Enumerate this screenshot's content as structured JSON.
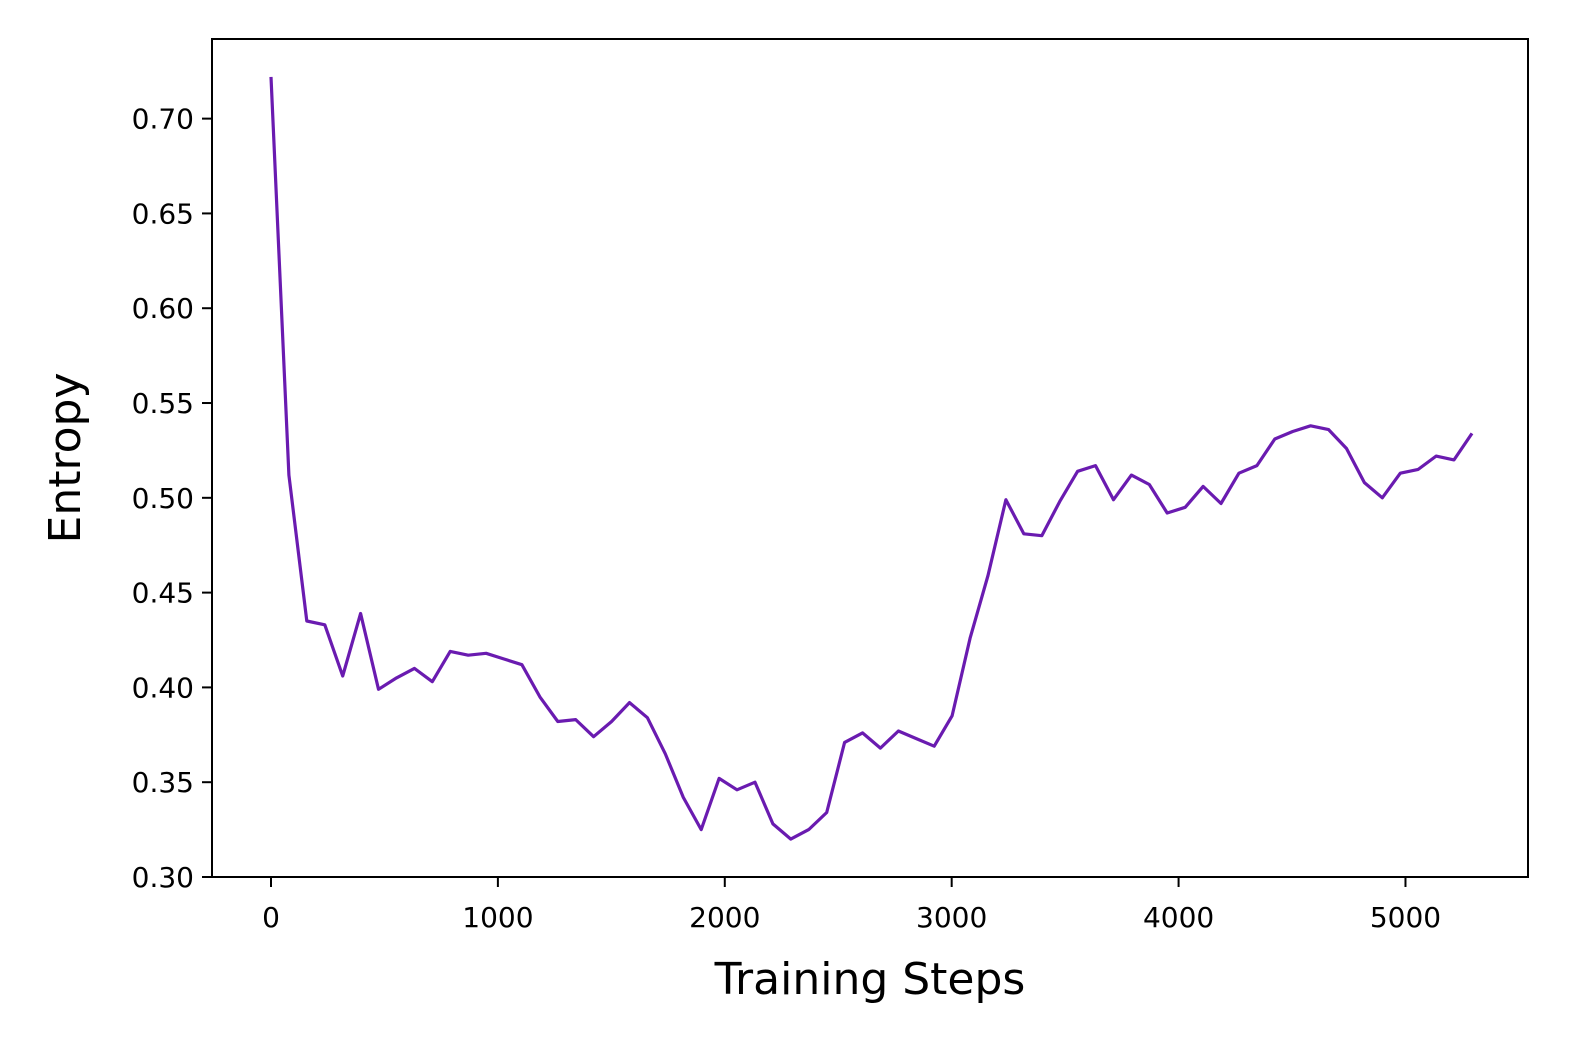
{
  "chart_data": {
    "type": "line",
    "title": "",
    "xlabel": "Training Steps",
    "ylabel": "Entropy",
    "xlim": [
      -260,
      5540
    ],
    "ylim": [
      0.3,
      0.742
    ],
    "xticks": [
      0,
      1000,
      2000,
      3000,
      4000,
      5000
    ],
    "xtick_labels": [
      "0",
      "1000",
      "2000",
      "3000",
      "4000",
      "5000"
    ],
    "yticks": [
      0.3,
      0.35,
      0.4,
      0.45,
      0.5,
      0.55,
      0.6,
      0.65,
      0.7
    ],
    "ytick_labels": [
      "0.30",
      "0.35",
      "0.40",
      "0.45",
      "0.50",
      "0.55",
      "0.60",
      "0.65",
      "0.70"
    ],
    "grid": false,
    "legend": "none",
    "line_color": "#6a1bb0",
    "series": [
      {
        "x": [
          0,
          79,
          158,
          237,
          316,
          395,
          474,
          553,
          632,
          711,
          790,
          869,
          948,
          1027,
          1106,
          1185,
          1264,
          1343,
          1422,
          1501,
          1580,
          1659,
          1738,
          1817,
          1896,
          1975,
          2054,
          2133,
          2212,
          2291,
          2370,
          2449,
          2528,
          2607,
          2686,
          2765,
          2844,
          2923,
          3002,
          3081,
          3160,
          3239,
          3318,
          3397,
          3476,
          3555,
          3634,
          3713,
          3792,
          3871,
          3950,
          4029,
          4108,
          4187,
          4266,
          4345,
          4424,
          4503,
          4582,
          4661,
          4740,
          4819,
          4898,
          4977,
          5056,
          5135,
          5214,
          5293
        ],
        "y": [
          0.722,
          0.512,
          0.435,
          0.433,
          0.406,
          0.439,
          0.399,
          0.405,
          0.41,
          0.403,
          0.419,
          0.417,
          0.418,
          0.415,
          0.412,
          0.395,
          0.382,
          0.383,
          0.374,
          0.382,
          0.392,
          0.384,
          0.365,
          0.342,
          0.325,
          0.352,
          0.346,
          0.35,
          0.328,
          0.32,
          0.325,
          0.334,
          0.371,
          0.376,
          0.368,
          0.377,
          0.373,
          0.369,
          0.385,
          0.426,
          0.459,
          0.499,
          0.481,
          0.48,
          0.498,
          0.514,
          0.517,
          0.499,
          0.512,
          0.507,
          0.492,
          0.495,
          0.506,
          0.497,
          0.513,
          0.517,
          0.531,
          0.535,
          0.538,
          0.536,
          0.526,
          0.508,
          0.5,
          0.513,
          0.515,
          0.522,
          0.52,
          0.534
        ]
      }
    ]
  }
}
